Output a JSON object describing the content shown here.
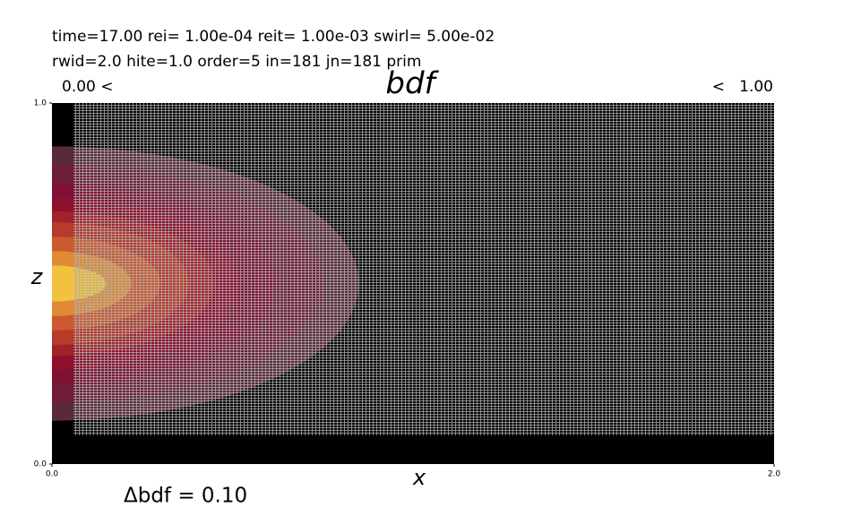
{
  "chart_data": {
    "type": "contour",
    "title": "bdf",
    "subtitle_lines": [
      "time=17.00   rei= 1.00e-04   reit= 1.00e-03   swirl= 5.00e-02",
      "rwid=2.0   hite=1.0   order=5   in=181   jn=181   prim"
    ],
    "range_labels": [
      {
        "value": 0,
        "label": "0.00 <"
      },
      {
        "value": 1,
        "label": "<   1.00"
      }
    ],
    "x_label": "x",
    "y_label": "z",
    "interval_label": "Δbdf = 0.10",
    "xlim": [
      0,
      2
    ],
    "ylim": [
      0,
      1
    ],
    "xticks": [
      {
        "value": 0,
        "label": "0.0"
      },
      {
        "value": 2,
        "label": "2.0"
      }
    ],
    "yticks": [
      {
        "value": 0,
        "label": "0.0"
      },
      {
        "value": 1,
        "label": "1.0"
      }
    ],
    "z_center": 0.5,
    "levels": [
      {
        "value": 0.1,
        "x_extent": 0.85,
        "z_halfwidth": 0.38,
        "color": "#5a2a3a"
      },
      {
        "value": 0.2,
        "x_extent": 0.75,
        "z_halfwidth": 0.33,
        "color": "#6e1e3a"
      },
      {
        "value": 0.3,
        "x_extent": 0.62,
        "z_halfwidth": 0.28,
        "color": "#7d1234"
      },
      {
        "value": 0.4,
        "x_extent": 0.52,
        "z_halfwidth": 0.24,
        "color": "#8e0f2e"
      },
      {
        "value": 0.5,
        "x_extent": 0.45,
        "z_halfwidth": 0.2,
        "color": "#a3222a"
      },
      {
        "value": 0.6,
        "x_extent": 0.38,
        "z_halfwidth": 0.17,
        "color": "#b83a2a"
      },
      {
        "value": 0.7,
        "x_extent": 0.3,
        "z_halfwidth": 0.13,
        "color": "#cc5a2e"
      },
      {
        "value": 0.8,
        "x_extent": 0.22,
        "z_halfwidth": 0.09,
        "color": "#e08a36"
      },
      {
        "value": 0.9,
        "x_extent": 0.15,
        "z_halfwidth": 0.05,
        "color": "#f2c23e"
      }
    ]
  }
}
